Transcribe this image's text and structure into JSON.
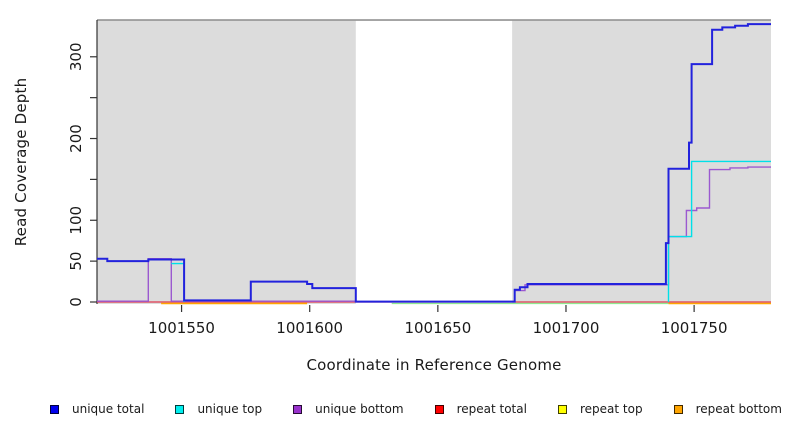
{
  "x_axis": {
    "label": "Coordinate in Reference Genome",
    "ticks": [
      {
        "v": 1001550,
        "label": "1001550"
      },
      {
        "v": 1001600,
        "label": "1001600"
      },
      {
        "v": 1001650,
        "label": "1001650"
      },
      {
        "v": 1001700,
        "label": "1001700"
      },
      {
        "v": 1001750,
        "label": "1001750"
      }
    ]
  },
  "y_axis": {
    "label": "Read Coverage Depth",
    "ticks": [
      {
        "v": 0,
        "label": "0"
      },
      {
        "v": 50,
        "label": "50"
      },
      {
        "v": 100,
        "label": "100"
      },
      {
        "v": 150,
        "label": ""
      },
      {
        "v": 200,
        "label": "200"
      },
      {
        "v": 250,
        "label": ""
      },
      {
        "v": 300,
        "label": "300"
      }
    ]
  },
  "legend": [
    {
      "label": "unique total",
      "color": "#0000EE"
    },
    {
      "label": "unique top",
      "color": "#00EEEE"
    },
    {
      "label": "unique bottom",
      "color": "#9932CC"
    },
    {
      "label": "repeat total",
      "color": "#FF0000"
    },
    {
      "label": "repeat top",
      "color": "#FFFF00"
    },
    {
      "label": "repeat bottom",
      "color": "#FFA500"
    }
  ],
  "colors": {
    "plot_background": "#DCDCDC",
    "masked_region": "#FFFFFF",
    "top_border": "#8C8C8C",
    "axis": "#333333"
  },
  "chart_data": {
    "type": "line",
    "subtype": "step-coverage",
    "title": "",
    "xlabel": "Coordinate in Reference Genome",
    "ylabel": "Read Coverage Depth",
    "xlim": [
      1001517,
      1001780
    ],
    "ylim": [
      0,
      345
    ],
    "grid": false,
    "legend_position": "bottom",
    "masked_region": [
      1001618,
      1001679
    ],
    "series": [
      {
        "name": "repeat total",
        "color": "#E03A50",
        "width": 1.2,
        "segments": [
          [
            [
              1001517,
              0
            ],
            [
              1001780,
              0
            ]
          ]
        ]
      },
      {
        "name": "repeat top",
        "color": "#8FE98F",
        "width": 1.3,
        "segments": [
          [
            [
              1001632,
              -1.8
            ],
            [
              1001740,
              -1.8
            ]
          ]
        ]
      },
      {
        "name": "repeat bottom",
        "color": "#FFA500",
        "width": 1.5,
        "segments": [
          [
            [
              1001542,
              -1.8
            ],
            [
              1001599,
              -1.8
            ]
          ],
          [
            [
              1001740,
              -1.8
            ],
            [
              1001780,
              -1.8
            ]
          ]
        ]
      },
      {
        "name": "unique bottom",
        "color": "#9B59D0",
        "width": 1.4,
        "segments": [
          [
            [
              1001517,
              1
            ],
            [
              1001537,
              53
            ],
            [
              1001546,
              1
            ],
            [
              1001618,
              0.5
            ],
            [
              1001680,
              14
            ],
            [
              1001684,
              21
            ],
            [
              1001739,
              21
            ],
            [
              1001740,
              80
            ],
            [
              1001747,
              112
            ],
            [
              1001751,
              115
            ],
            [
              1001756,
              162
            ],
            [
              1001764,
              164
            ],
            [
              1001771,
              165
            ],
            [
              1001780,
              165
            ]
          ]
        ]
      },
      {
        "name": "unique top",
        "color": "#00E0E8",
        "width": 1.4,
        "segments": [
          [
            [
              1001546,
              47
            ],
            [
              1001551,
              0
            ]
          ],
          [
            [
              1001740,
              0
            ],
            [
              1001740,
              80
            ],
            [
              1001749,
              172
            ],
            [
              1001780,
              172
            ]
          ]
        ]
      },
      {
        "name": "unique total",
        "color": "#2222DD",
        "width": 2,
        "segments": [
          [
            [
              1001517,
              53
            ],
            [
              1001521,
              50
            ],
            [
              1001537,
              52
            ],
            [
              1001551,
              2
            ],
            [
              1001577,
              25
            ],
            [
              1001599,
              22
            ],
            [
              1001601,
              17
            ],
            [
              1001618,
              0.5
            ],
            [
              1001680,
              15
            ],
            [
              1001682,
              18
            ],
            [
              1001685,
              22
            ],
            [
              1001739,
              72
            ],
            [
              1001740,
              163
            ],
            [
              1001748,
              195
            ],
            [
              1001749,
              291
            ],
            [
              1001757,
              333
            ],
            [
              1001761,
              336
            ],
            [
              1001766,
              338
            ],
            [
              1001771,
              340
            ],
            [
              1001780,
              340
            ]
          ]
        ]
      }
    ]
  }
}
